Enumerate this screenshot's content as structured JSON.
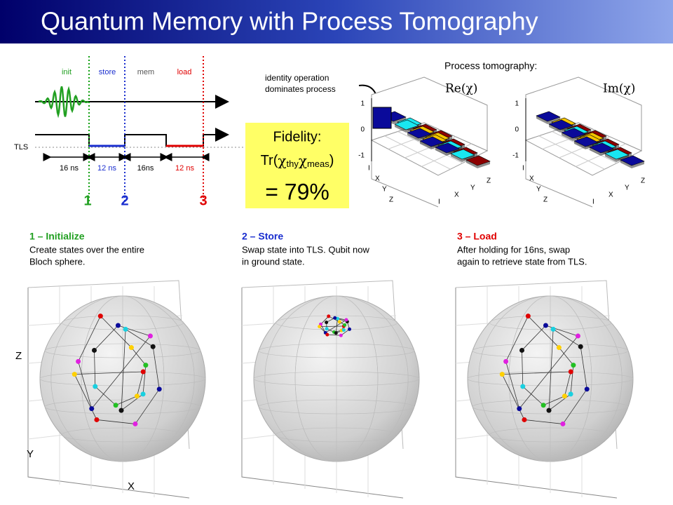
{
  "header": {
    "title": "Quantum Memory with Process Tomography"
  },
  "sequence": {
    "phases": [
      "init",
      "store",
      "mem",
      "load"
    ],
    "track_label": "TLS",
    "durations": [
      "16 ns",
      "12 ns",
      "16ns",
      "12 ns"
    ],
    "markers": [
      "1",
      "2",
      "3"
    ]
  },
  "fidelity": {
    "label": "Fidelity:",
    "prefix": "Tr(",
    "symbol": "χ",
    "sub1": "thy",
    "sub2": "meas",
    "suffix": ")",
    "value": "= 79%"
  },
  "annotation": {
    "lines": [
      "identity operation",
      "dominates process"
    ]
  },
  "tomography": {
    "title": "Process tomography:",
    "panels": [
      "Re(χ)",
      "Im(χ)"
    ],
    "zticks": [
      "1",
      "0",
      "-1"
    ],
    "axis_labels": [
      "I",
      "X",
      "Y",
      "Z"
    ]
  },
  "steps": [
    {
      "title": "1 – Initialize",
      "lines": [
        "Create states over the entire",
        "Bloch sphere."
      ]
    },
    {
      "title": "2 – Store",
      "lines": [
        "Swap state into TLS.  Qubit now",
        "in ground state."
      ]
    },
    {
      "title": "3 – Load",
      "lines": [
        "After holding for 16ns, swap",
        "again to retrieve state from TLS."
      ]
    }
  ],
  "bloch_axes": [
    "Z",
    "Y",
    "X"
  ]
}
